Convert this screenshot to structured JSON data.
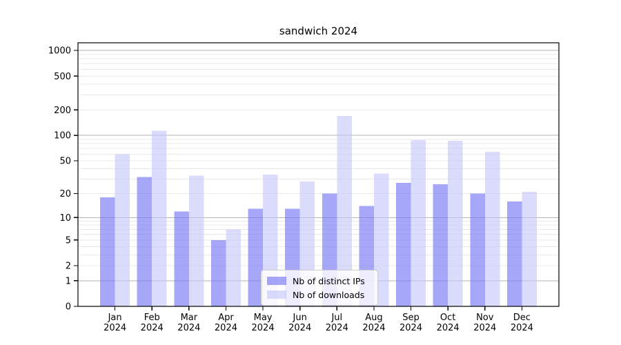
{
  "chart_data": {
    "type": "bar",
    "title": "sandwich 2024",
    "x_ticks": [
      {
        "month": "Jan",
        "year": "2024"
      },
      {
        "month": "Feb",
        "year": "2024"
      },
      {
        "month": "Mar",
        "year": "2024"
      },
      {
        "month": "Apr",
        "year": "2024"
      },
      {
        "month": "May",
        "year": "2024"
      },
      {
        "month": "Jun",
        "year": "2024"
      },
      {
        "month": "Jul",
        "year": "2024"
      },
      {
        "month": "Aug",
        "year": "2024"
      },
      {
        "month": "Sep",
        "year": "2024"
      },
      {
        "month": "Oct",
        "year": "2024"
      },
      {
        "month": "Nov",
        "year": "2024"
      },
      {
        "month": "Dec",
        "year": "2024"
      }
    ],
    "series": [
      {
        "name": "Nb of distinct IPs",
        "color": "rgba(113,113,247,0.62)",
        "values": [
          18,
          32,
          12,
          5,
          13,
          13,
          20,
          14,
          27,
          26,
          20,
          16
        ]
      },
      {
        "name": "Nb of downloads",
        "color": "rgba(197,197,248,0.62)",
        "values": [
          60,
          113,
          33,
          7,
          34,
          28,
          170,
          35,
          88,
          86,
          64,
          21
        ]
      }
    ],
    "y_ticks": [
      0,
      1,
      2,
      5,
      10,
      20,
      50,
      100,
      200,
      500,
      1000
    ],
    "y_scale": "log1p",
    "ylim": [
      0,
      1230
    ],
    "grid": {
      "major_values": [
        1,
        10,
        100,
        1000
      ],
      "major_color": "#b2b2b2",
      "minor_color": "#e9e9e9"
    },
    "axis_color": "#000000",
    "legend_position": "lower center"
  }
}
